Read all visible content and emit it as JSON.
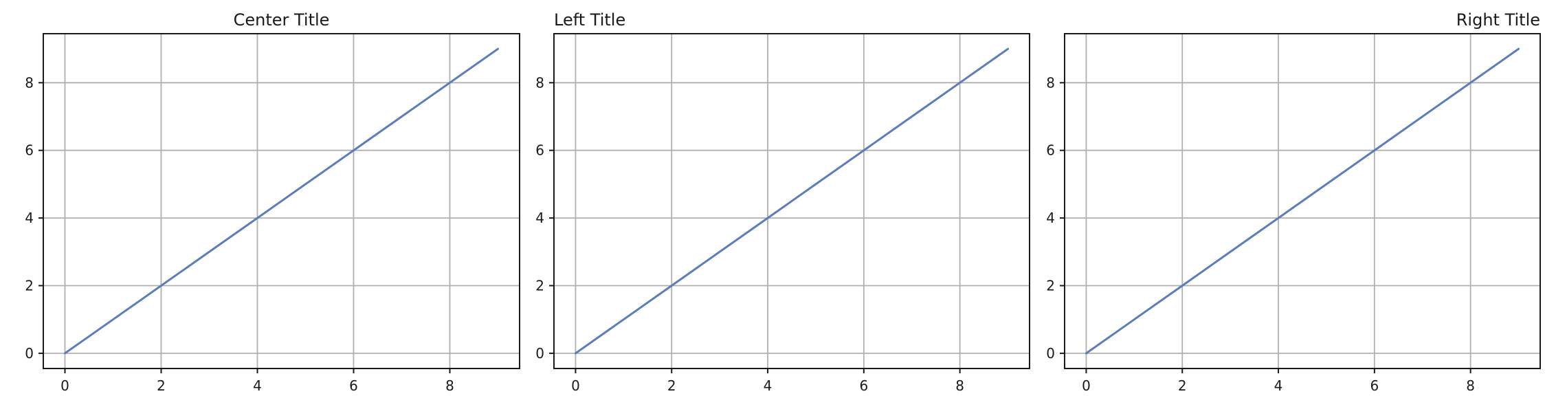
{
  "chart_data": [
    {
      "type": "line",
      "title": "Center Title",
      "title_loc": "center",
      "x": [
        0,
        1,
        2,
        3,
        4,
        5,
        6,
        7,
        8,
        9
      ],
      "series": [
        {
          "values": [
            0,
            1,
            2,
            3,
            4,
            5,
            6,
            7,
            8,
            9
          ],
          "color": "#5b7db9"
        }
      ],
      "xlim": [
        -0.45,
        9.45
      ],
      "ylim": [
        -0.45,
        9.45
      ],
      "xticks": [
        0,
        2,
        4,
        6,
        8
      ],
      "yticks": [
        0,
        2,
        4,
        6,
        8
      ],
      "grid": true,
      "xlabel": "",
      "ylabel": ""
    },
    {
      "type": "line",
      "title": "Left Title",
      "title_loc": "left",
      "x": [
        0,
        1,
        2,
        3,
        4,
        5,
        6,
        7,
        8,
        9
      ],
      "series": [
        {
          "values": [
            0,
            1,
            2,
            3,
            4,
            5,
            6,
            7,
            8,
            9
          ],
          "color": "#5b7db9"
        }
      ],
      "xlim": [
        -0.45,
        9.45
      ],
      "ylim": [
        -0.45,
        9.45
      ],
      "xticks": [
        0,
        2,
        4,
        6,
        8
      ],
      "yticks": [
        0,
        2,
        4,
        6,
        8
      ],
      "grid": true,
      "xlabel": "",
      "ylabel": ""
    },
    {
      "type": "line",
      "title": "Right Title",
      "title_loc": "right",
      "x": [
        0,
        1,
        2,
        3,
        4,
        5,
        6,
        7,
        8,
        9
      ],
      "series": [
        {
          "values": [
            0,
            1,
            2,
            3,
            4,
            5,
            6,
            7,
            8,
            9
          ],
          "color": "#5b7db9"
        }
      ],
      "xlim": [
        -0.45,
        9.45
      ],
      "ylim": [
        -0.45,
        9.45
      ],
      "xticks": [
        0,
        2,
        4,
        6,
        8
      ],
      "yticks": [
        0,
        2,
        4,
        6,
        8
      ],
      "grid": true,
      "xlabel": "",
      "ylabel": ""
    }
  ]
}
